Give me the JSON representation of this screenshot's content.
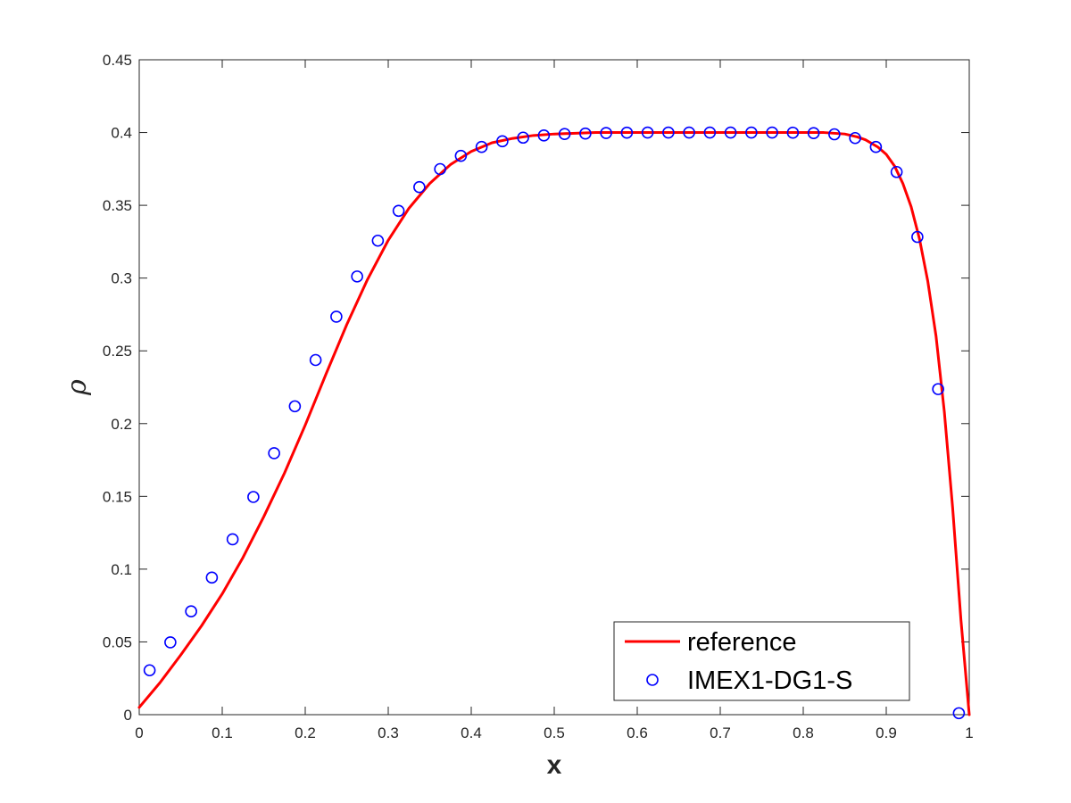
{
  "chart_data": {
    "type": "line",
    "title": "",
    "xlabel": "x",
    "ylabel": "ρ",
    "xlim": [
      0,
      1
    ],
    "ylim": [
      0,
      0.45
    ],
    "xticks": [
      0,
      0.1,
      0.2,
      0.3,
      0.4,
      0.5,
      0.6,
      0.7,
      0.8,
      0.9,
      1
    ],
    "xtick_labels": [
      "0",
      "0.1",
      "0.2",
      "0.3",
      "0.4",
      "0.5",
      "0.6",
      "0.7",
      "0.8",
      "0.9",
      "1"
    ],
    "yticks": [
      0,
      0.05,
      0.1,
      0.15,
      0.2,
      0.25,
      0.3,
      0.35,
      0.4,
      0.45
    ],
    "ytick_labels": [
      "0",
      "0.05",
      "0.1",
      "0.15",
      "0.2",
      "0.25",
      "0.3",
      "0.35",
      "0.4",
      "0.45"
    ],
    "grid": false,
    "legend_position": "bottom-right",
    "series": [
      {
        "name": "reference",
        "style": "line",
        "color": "#ff0000",
        "x": [
          0,
          0.025,
          0.05,
          0.075,
          0.1,
          0.125,
          0.15,
          0.175,
          0.2,
          0.225,
          0.25,
          0.275,
          0.3,
          0.325,
          0.35,
          0.375,
          0.4,
          0.425,
          0.45,
          0.475,
          0.5,
          0.55,
          0.6,
          0.65,
          0.7,
          0.75,
          0.8,
          0.825,
          0.85,
          0.865,
          0.875,
          0.89,
          0.9,
          0.91,
          0.92,
          0.93,
          0.94,
          0.95,
          0.96,
          0.97,
          0.98,
          0.99,
          1
        ],
        "y": [
          0.005,
          0.022,
          0.041,
          0.061,
          0.083,
          0.108,
          0.136,
          0.166,
          0.199,
          0.234,
          0.268,
          0.299,
          0.326,
          0.348,
          0.365,
          0.378,
          0.387,
          0.393,
          0.396,
          0.398,
          0.399,
          0.4,
          0.4,
          0.4,
          0.4,
          0.4,
          0.4,
          0.4,
          0.399,
          0.397,
          0.395,
          0.39,
          0.385,
          0.377,
          0.365,
          0.349,
          0.327,
          0.298,
          0.26,
          0.208,
          0.142,
          0.065,
          0
        ]
      },
      {
        "name": "IMEX1-DG1-S",
        "style": "marker",
        "marker": "circle",
        "color": "#0000ff",
        "x": [
          0.0125,
          0.0375,
          0.0625,
          0.0875,
          0.1125,
          0.1375,
          0.1625,
          0.1875,
          0.2125,
          0.2375,
          0.2625,
          0.2875,
          0.3125,
          0.3375,
          0.3625,
          0.3875,
          0.4125,
          0.4375,
          0.4625,
          0.4875,
          0.5125,
          0.5375,
          0.5625,
          0.5875,
          0.6125,
          0.6375,
          0.6625,
          0.6875,
          0.7125,
          0.7375,
          0.7625,
          0.7875,
          0.8125,
          0.8375,
          0.8625,
          0.8875,
          0.9125,
          0.9375,
          0.9625,
          0.9875
        ],
        "y": [
          0.0305,
          0.0497,
          0.071,
          0.0942,
          0.1205,
          0.1496,
          0.1797,
          0.2119,
          0.2437,
          0.2735,
          0.3011,
          0.3257,
          0.3462,
          0.3625,
          0.3749,
          0.384,
          0.3901,
          0.394,
          0.3965,
          0.398,
          0.399,
          0.3993,
          0.3997,
          0.3999,
          0.4,
          0.4,
          0.4,
          0.4,
          0.4,
          0.4,
          0.4,
          0.3999,
          0.3996,
          0.3988,
          0.3962,
          0.3901,
          0.3729,
          0.3283,
          0.2237,
          0.001
        ]
      }
    ]
  }
}
